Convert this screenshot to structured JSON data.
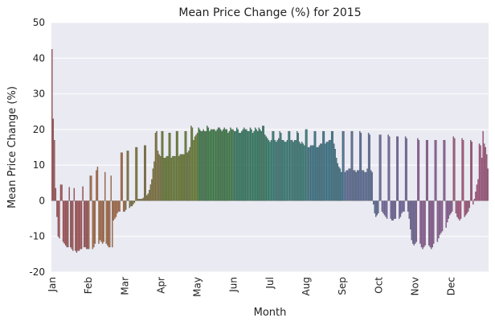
{
  "chart_data": {
    "type": "bar",
    "title": "Mean Price Change (%) for 2015",
    "xlabel": "Month",
    "ylabel": "Mean Price Change (%)",
    "ylim": [
      -20,
      50
    ],
    "yticks": [
      -20,
      -10,
      0,
      10,
      20,
      30,
      40,
      50
    ],
    "months": [
      "Jan",
      "Feb",
      "Mar",
      "Apr",
      "May",
      "Jun",
      "Jul",
      "Aug",
      "Sep",
      "Oct",
      "Nov",
      "Dec"
    ],
    "grid": "horizontal",
    "colors": [
      "#c44e52",
      "#c8703a",
      "#8c7b2c",
      "#6e8a1f",
      "#2e8a3c",
      "#1f8a64",
      "#268a82",
      "#2a7f9a",
      "#5a74b0",
      "#7a6ab8",
      "#a05cab",
      "#c4508a"
    ],
    "series": [
      {
        "values": [
          42.5,
          23.0,
          17.0,
          3.5,
          -4.5,
          -10.0,
          -10.5,
          4.5,
          4.5,
          -11.5,
          -12.0,
          -12.5,
          -13.0,
          -13.0,
          3.8,
          -13.0,
          -13.5,
          -14.0,
          3.5,
          -14.0,
          -14.5,
          -14.0,
          -14.0,
          -13.5,
          -13.5,
          4.0,
          -13.0,
          -13.0,
          -13.5,
          -13.5,
          -13.5,
          7.0,
          7.0,
          -13.5,
          -13.0,
          -12.0,
          8.5,
          9.5,
          -12.0,
          -11.0,
          -11.5,
          -12.0,
          -11.5,
          8.0,
          -12.0,
          -12.5,
          -13.0,
          -13.0,
          7.0,
          -13.0,
          -5.5,
          -5.0,
          -4.5,
          -3.5,
          -3.0,
          -3.0,
          13.5,
          13.5,
          -3.0,
          -3.0,
          -2.5,
          14.0,
          14.0,
          -2.0,
          -1.5,
          -1.5,
          -1.0,
          -0.5,
          15.0,
          15.0,
          0.5,
          0.5,
          0.5,
          0.5,
          0.8,
          15.5,
          15.5,
          1.5,
          2.0,
          3.0,
          4.5,
          6.0,
          9.0,
          11.0,
          19.0,
          19.5,
          14.0,
          13.0,
          12.5,
          19.5,
          19.5,
          12.0,
          12.0,
          12.5,
          12.5,
          19.0,
          19.0,
          12.0,
          12.5,
          12.5,
          12.5,
          19.5,
          19.5,
          12.5,
          13.0,
          13.0,
          13.0,
          13.0,
          19.5,
          19.5,
          13.5,
          14.0,
          15.0,
          21.0,
          20.5,
          17.0,
          18.0,
          18.5,
          19.0,
          20.5,
          20.0,
          19.5,
          19.5,
          20.0,
          19.5,
          19.5,
          21.0,
          20.5,
          19.5,
          20.0,
          20.0,
          20.0,
          20.0,
          19.5,
          20.0,
          20.5,
          20.5,
          20.0,
          19.5,
          20.0,
          20.5,
          20.0,
          20.0,
          19.0,
          19.5,
          20.5,
          20.0,
          20.0,
          19.5,
          19.5,
          20.5,
          20.0,
          19.0,
          19.0,
          19.5,
          20.0,
          20.5,
          20.0,
          20.0,
          19.5,
          19.5,
          20.5,
          20.0,
          19.0,
          19.5,
          20.5,
          20.0,
          19.5,
          20.5,
          20.0,
          19.5,
          21.0,
          21.0,
          18.5,
          18.0,
          17.5,
          17.0,
          16.5,
          17.0,
          19.5,
          19.5,
          17.0,
          16.5,
          17.0,
          17.5,
          19.5,
          19.0,
          17.0,
          17.0,
          16.5,
          16.5,
          17.0,
          19.5,
          19.5,
          17.0,
          17.0,
          16.5,
          17.0,
          17.0,
          19.5,
          19.0,
          16.5,
          16.0,
          16.5,
          16.0,
          15.5,
          20.0,
          20.0,
          15.0,
          15.0,
          15.5,
          15.5,
          15.5,
          19.5,
          19.5,
          15.0,
          15.0,
          15.5,
          16.0,
          16.0,
          19.5,
          19.5,
          16.0,
          16.5,
          16.5,
          17.0,
          17.0,
          19.5,
          19.5,
          16.0,
          14.5,
          12.0,
          10.5,
          9.5,
          9.0,
          8.0,
          19.5,
          19.5,
          8.0,
          8.5,
          8.5,
          9.0,
          9.0,
          19.5,
          19.5,
          8.5,
          8.5,
          8.0,
          8.5,
          8.5,
          19.5,
          19.0,
          8.5,
          8.5,
          8.0,
          8.0,
          9.0,
          19.0,
          18.5,
          8.5,
          8.0,
          -1.0,
          -3.5,
          -4.5,
          -4.0,
          -3.5,
          18.5,
          18.5,
          -3.0,
          -3.5,
          -4.0,
          -4.5,
          -5.0,
          18.5,
          18.0,
          -5.0,
          -5.5,
          -5.5,
          -5.0,
          -5.0,
          18.0,
          18.0,
          -5.0,
          -4.5,
          -3.5,
          -3.0,
          -3.0,
          18.0,
          17.5,
          -3.0,
          -5.0,
          -8.0,
          -11.0,
          -12.0,
          -12.5,
          -12.0,
          -11.5,
          17.5,
          17.0,
          -12.0,
          -13.0,
          -13.5,
          -13.0,
          -12.5,
          17.0,
          17.0,
          -12.5,
          -13.0,
          -13.5,
          -13.0,
          -12.0,
          17.0,
          17.0,
          -11.5,
          -10.5,
          -9.5,
          -9.0,
          -8.5,
          17.0,
          17.0,
          -7.5,
          -6.0,
          -5.0,
          -4.0,
          -3.5,
          -3.0,
          18.0,
          17.5,
          -3.5,
          -4.5,
          -5.0,
          -5.5,
          -5.0,
          17.5,
          17.0,
          -4.5,
          -4.0,
          -3.5,
          -3.0,
          -2.0,
          17.0,
          16.5,
          -1.0,
          0.5,
          2.5,
          4.5,
          6.0,
          16.0,
          15.5,
          12.0,
          19.5,
          16.0,
          15.0,
          13.0,
          9.0
        ]
      }
    ]
  }
}
